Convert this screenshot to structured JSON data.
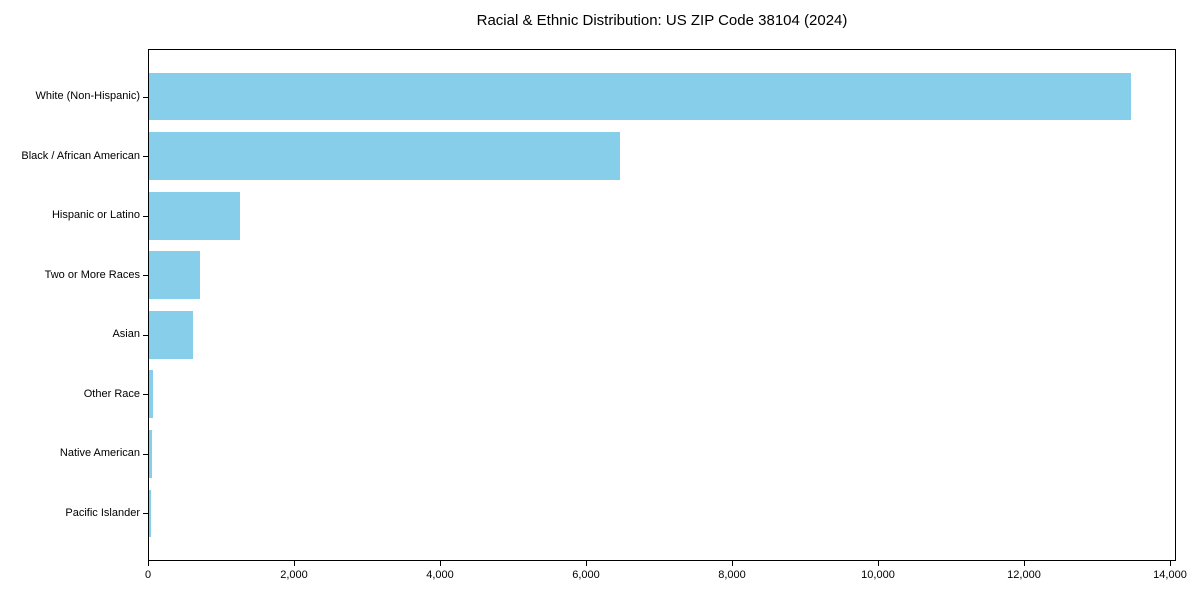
{
  "chart_data": {
    "type": "bar",
    "orientation": "horizontal",
    "title": "Racial & Ethnic Distribution: US ZIP Code 38104 (2024)",
    "categories": [
      "White (Non-Hispanic)",
      "Black / African American",
      "Hispanic or Latino",
      "Two or More Races",
      "Asian",
      "Other Race",
      "Native American",
      "Pacific Islander"
    ],
    "values": [
      13450,
      6450,
      1250,
      700,
      600,
      60,
      40,
      30
    ],
    "xlabel": "",
    "ylabel": "",
    "xlim": [
      0,
      14000
    ],
    "xticks": [
      0,
      2000,
      4000,
      6000,
      8000,
      10000,
      12000,
      14000
    ],
    "xtick_labels": [
      "0",
      "2,000",
      "4,000",
      "6,000",
      "8,000",
      "10,000",
      "12,000",
      "14,000"
    ],
    "bar_color": "#87CEEB",
    "grid": false,
    "legend": null
  }
}
